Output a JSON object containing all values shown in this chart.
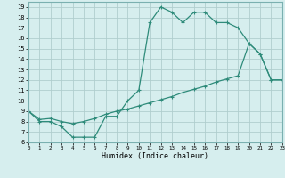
{
  "line1_x": [
    0,
    1,
    2,
    3,
    4,
    5,
    6,
    7,
    8,
    9,
    10,
    11,
    12,
    13,
    14,
    15,
    16,
    17,
    18,
    19,
    20,
    21,
    22,
    23
  ],
  "line1_y": [
    9,
    8,
    8,
    7.5,
    6.5,
    6.5,
    6.5,
    8.5,
    8.5,
    10,
    11,
    17.5,
    19,
    18.5,
    17.5,
    18.5,
    18.5,
    17.5,
    17.5,
    17,
    15.5,
    14.5,
    12,
    12
  ],
  "line2_x": [
    0,
    1,
    2,
    3,
    4,
    5,
    6,
    7,
    8,
    9,
    10,
    11,
    12,
    13,
    14,
    15,
    16,
    17,
    18,
    19,
    20,
    21,
    22,
    23
  ],
  "line2_y": [
    9,
    8.2,
    8.3,
    8.0,
    7.8,
    8.0,
    8.3,
    8.7,
    9.0,
    9.2,
    9.5,
    9.8,
    10.1,
    10.4,
    10.8,
    11.1,
    11.4,
    11.8,
    12.1,
    12.4,
    15.5,
    14.5,
    12,
    12
  ],
  "line_color": "#2e8b7a",
  "bg_color": "#d6eeee",
  "grid_color": "#b0cece",
  "xlabel": "Humidex (Indice chaleur)",
  "xlim": [
    0,
    23
  ],
  "ylim": [
    6,
    19.5
  ],
  "yticks": [
    6,
    7,
    8,
    9,
    10,
    11,
    12,
    13,
    14,
    15,
    16,
    17,
    18,
    19
  ],
  "xticks": [
    0,
    1,
    2,
    3,
    4,
    5,
    6,
    7,
    8,
    9,
    10,
    11,
    12,
    13,
    14,
    15,
    16,
    17,
    18,
    19,
    20,
    21,
    22,
    23
  ]
}
